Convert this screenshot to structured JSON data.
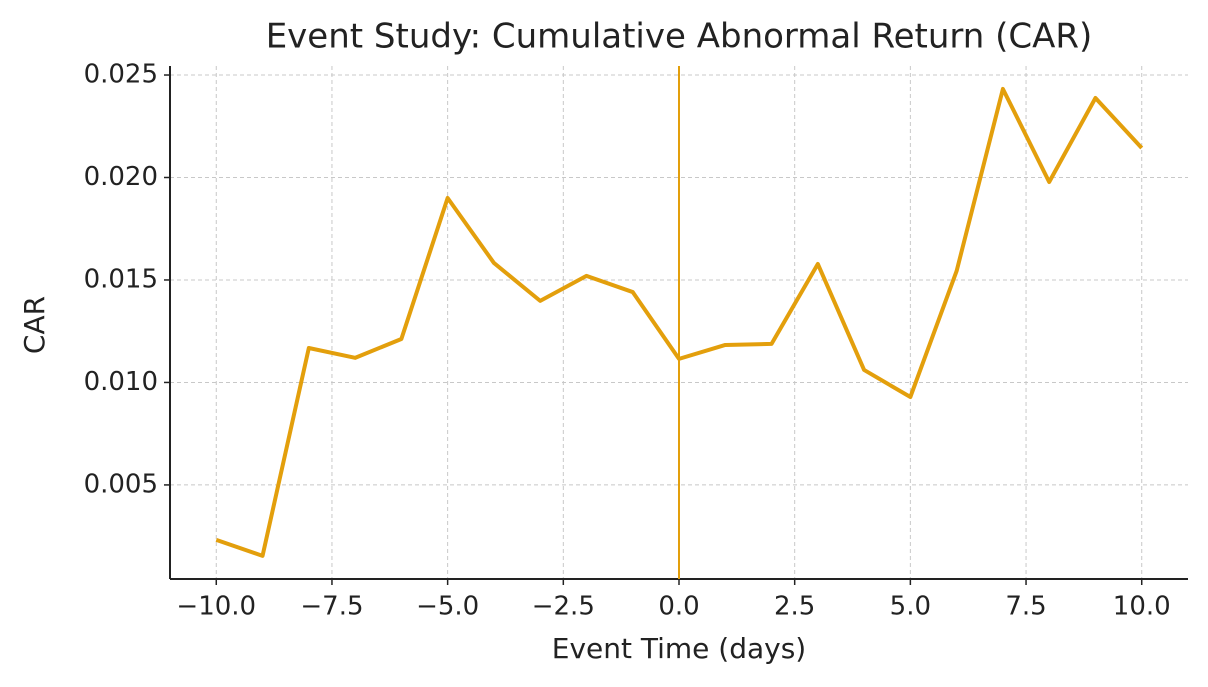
{
  "chart_data": {
    "type": "line",
    "title": "Event Study: Cumulative Abnormal Return (CAR)",
    "xlabel": "Event Time (days)",
    "ylabel": "CAR",
    "x": [
      -10,
      -9,
      -8,
      -7,
      -6,
      -5,
      -4,
      -3,
      -2,
      -1,
      0,
      1,
      2,
      3,
      4,
      5,
      6,
      7,
      8,
      9,
      10
    ],
    "series": [
      {
        "name": "CAR",
        "color": "#e39f0c",
        "values": [
          0.00232,
          0.00154,
          0.01168,
          0.0112,
          0.01212,
          0.019,
          0.01583,
          0.01398,
          0.0152,
          0.01441,
          0.01115,
          0.01183,
          0.01188,
          0.01578,
          0.01061,
          0.00929,
          0.01544,
          0.02432,
          0.01978,
          0.02388,
          0.02144
        ]
      }
    ],
    "event_line": 0,
    "xlim": [
      -11,
      11
    ],
    "xticks": [
      {
        "value": -10,
        "label": "−10.0"
      },
      {
        "value": -7.5,
        "label": "−7.5"
      },
      {
        "value": -5,
        "label": "−5.0"
      },
      {
        "value": -2.5,
        "label": "−2.5"
      },
      {
        "value": 0,
        "label": "0.0"
      },
      2.5,
      {
        "value": 5,
        "label": "5.0"
      },
      7.5,
      {
        "value": 10,
        "label": "10.0"
      }
    ],
    "ylim": [
      0.00041,
      0.02544
    ],
    "yticks": [
      0.005,
      {
        "value": 0.01,
        "label": "0.010"
      },
      0.015,
      {
        "value": 0.02,
        "label": "0.020"
      },
      0.025
    ],
    "grid": true
  }
}
